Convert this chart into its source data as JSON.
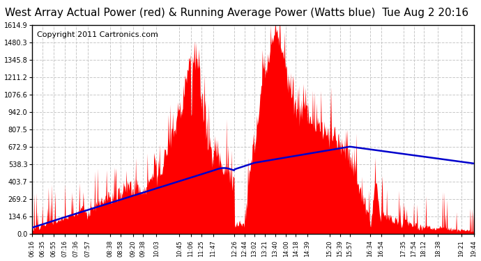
{
  "title": "West Array Actual Power (red) & Running Average Power (Watts blue)  Tue Aug 2 20:16",
  "copyright": "Copyright 2011 Cartronics.com",
  "background_color": "#ffffff",
  "plot_bg_color": "#ffffff",
  "bar_color": "#ff0000",
  "line_color": "#0000cc",
  "grid_color": "#c8c8c8",
  "ytick_labels": [
    "0.0",
    "134.6",
    "269.2",
    "403.7",
    "538.3",
    "672.9",
    "807.5",
    "942.0",
    "1076.6",
    "1211.2",
    "1345.8",
    "1480.3",
    "1614.9"
  ],
  "ytick_values": [
    0.0,
    134.6,
    269.2,
    403.7,
    538.3,
    672.9,
    807.5,
    942.0,
    1076.6,
    1211.2,
    1345.8,
    1480.3,
    1614.9
  ],
  "xtick_labels": [
    "06:16",
    "06:35",
    "06:55",
    "07:16",
    "07:36",
    "07:57",
    "08:38",
    "08:58",
    "09:20",
    "09:38",
    "10:03",
    "10:45",
    "11:06",
    "11:25",
    "11:47",
    "12:26",
    "12:44",
    "13:02",
    "13:21",
    "13:40",
    "14:00",
    "14:18",
    "14:39",
    "15:20",
    "15:39",
    "15:57",
    "16:34",
    "16:54",
    "17:35",
    "17:54",
    "18:12",
    "18:38",
    "19:21",
    "19:44"
  ],
  "ymax": 1614.9,
  "ymin": 0.0,
  "title_fontsize": 11,
  "copyright_fontsize": 8
}
